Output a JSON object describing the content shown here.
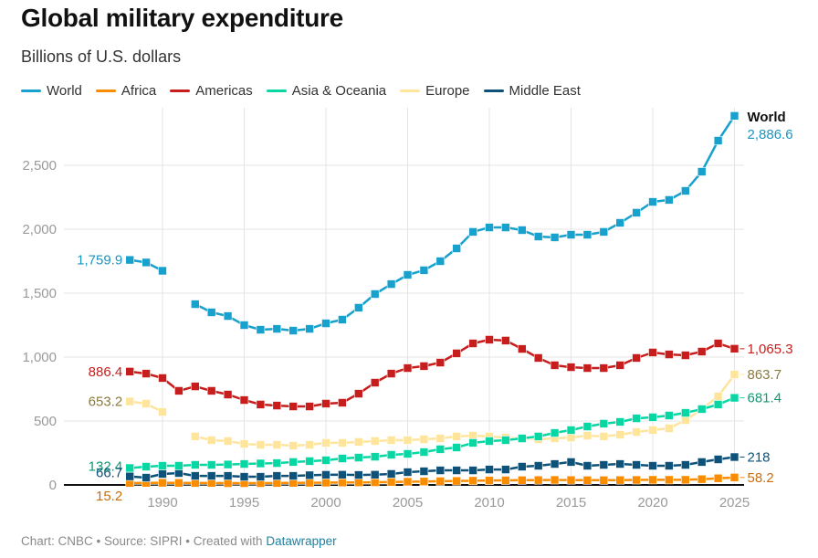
{
  "header": {
    "title": "Global military expenditure",
    "subtitle": "Billions of U.S. dollars"
  },
  "footer": {
    "chart_credit": "Chart: CNBC",
    "separator": " • ",
    "source": "Source: SIPRI",
    "created_with": "Created with ",
    "tool_link": "Datawrapper"
  },
  "chart_data": {
    "type": "line",
    "title": "Global military expenditure",
    "subtitle": "Billions of U.S. dollars",
    "xlabel": "",
    "ylabel": "",
    "xlim": [
      1986,
      2025
    ],
    "ylim": [
      0,
      2900
    ],
    "grid": true,
    "legend_position": "top-left",
    "x_ticks": [
      1990,
      1995,
      2000,
      2005,
      2010,
      2015,
      2020,
      2025
    ],
    "x_tick_labels": [
      "1990",
      "1995",
      "2000",
      "2005",
      "2010",
      "2015",
      "2020",
      "2025"
    ],
    "y_ticks": [
      0,
      500,
      1000,
      1500,
      2000,
      2500
    ],
    "y_tick_labels": [
      "0",
      "500",
      "1,000",
      "1,500",
      "2,000",
      "2,500"
    ],
    "x": [
      1988,
      1989,
      1990,
      1991,
      1992,
      1993,
      1994,
      1995,
      1996,
      1997,
      1998,
      1999,
      2000,
      2001,
      2002,
      2003,
      2004,
      2005,
      2006,
      2007,
      2008,
      2009,
      2010,
      2011,
      2012,
      2013,
      2014,
      2015,
      2016,
      2017,
      2018,
      2019,
      2020,
      2021,
      2022,
      2023,
      2024,
      2025
    ],
    "series": [
      {
        "name": "World",
        "color": "#18a1cd",
        "label_color": "#1d93bf",
        "start_label": "1,759.9",
        "end_label": "2,886.6",
        "end_name": "World",
        "values": [
          1759.9,
          1740,
          1675,
          null,
          1414,
          1350,
          1321,
          1250,
          1214,
          1221,
          1207,
          1221,
          1264,
          1293,
          1386,
          1493,
          1571,
          1643,
          1679,
          1750,
          1850,
          1979,
          2014,
          2014,
          1993,
          1943,
          1936,
          1957,
          1957,
          1979,
          2050,
          2129,
          2214,
          2229,
          2300,
          2450,
          2693,
          2886.6
        ]
      },
      {
        "name": "Africa",
        "color": "#fa8c00",
        "label_color": "#c96d0d",
        "start_label": "15.2",
        "end_label": "58.2",
        "values": [
          15.2,
          16,
          17,
          16,
          15,
          15,
          14,
          14,
          14,
          15,
          16,
          17,
          18,
          19,
          20,
          21,
          23,
          25,
          27,
          29,
          31,
          33,
          35,
          36,
          37,
          38,
          39,
          38,
          37,
          37,
          38,
          39,
          40,
          40,
          40,
          45,
          52,
          58.2
        ]
      },
      {
        "name": "Americas",
        "color": "#c71e1d",
        "label_color": "#c71e1d",
        "start_label": "886.4",
        "end_label": "1,065.3",
        "values": [
          886.4,
          871,
          836,
          736,
          771,
          736,
          707,
          664,
          629,
          621,
          614,
          614,
          636,
          643,
          714,
          800,
          871,
          914,
          929,
          957,
          1029,
          1107,
          1136,
          1129,
          1064,
          993,
          936,
          921,
          914,
          914,
          936,
          993,
          1036,
          1021,
          1014,
          1043,
          1107,
          1065.3
        ]
      },
      {
        "name": "Asia & Oceania",
        "color": "#09d7a3",
        "label_color": "#0f9872",
        "start_label": "132.4",
        "end_label": "681.4",
        "values": [
          132.4,
          143,
          150,
          150,
          157,
          157,
          160,
          164,
          168,
          171,
          179,
          186,
          193,
          207,
          214,
          221,
          236,
          243,
          257,
          279,
          293,
          329,
          343,
          350,
          364,
          379,
          407,
          429,
          457,
          479,
          493,
          521,
          529,
          543,
          564,
          593,
          629,
          681.4
        ]
      },
      {
        "name": "Europe",
        "color": "#ffe59c",
        "label_color": "#8b7a3e",
        "start_label": "653.2",
        "end_label": "863.7",
        "values": [
          653.2,
          636,
          571,
          null,
          379,
          350,
          343,
          321,
          314,
          314,
          307,
          314,
          329,
          329,
          336,
          343,
          350,
          350,
          357,
          364,
          379,
          386,
          379,
          371,
          364,
          357,
          364,
          371,
          386,
          379,
          393,
          414,
          429,
          443,
          507,
          593,
          693,
          863.7
        ]
      },
      {
        "name": "Middle East",
        "color": "#0f5279",
        "label_color": "#0f5279",
        "start_label": "66.7",
        "end_label": "218",
        "values": [
          66.7,
          57,
          86,
          93,
          71,
          71,
          71,
          64,
          64,
          71,
          71,
          76,
          79,
          80,
          78,
          80,
          86,
          100,
          107,
          114,
          114,
          114,
          121,
          121,
          143,
          150,
          164,
          179,
          150,
          157,
          164,
          157,
          150,
          150,
          157,
          179,
          200,
          218
        ]
      }
    ]
  }
}
